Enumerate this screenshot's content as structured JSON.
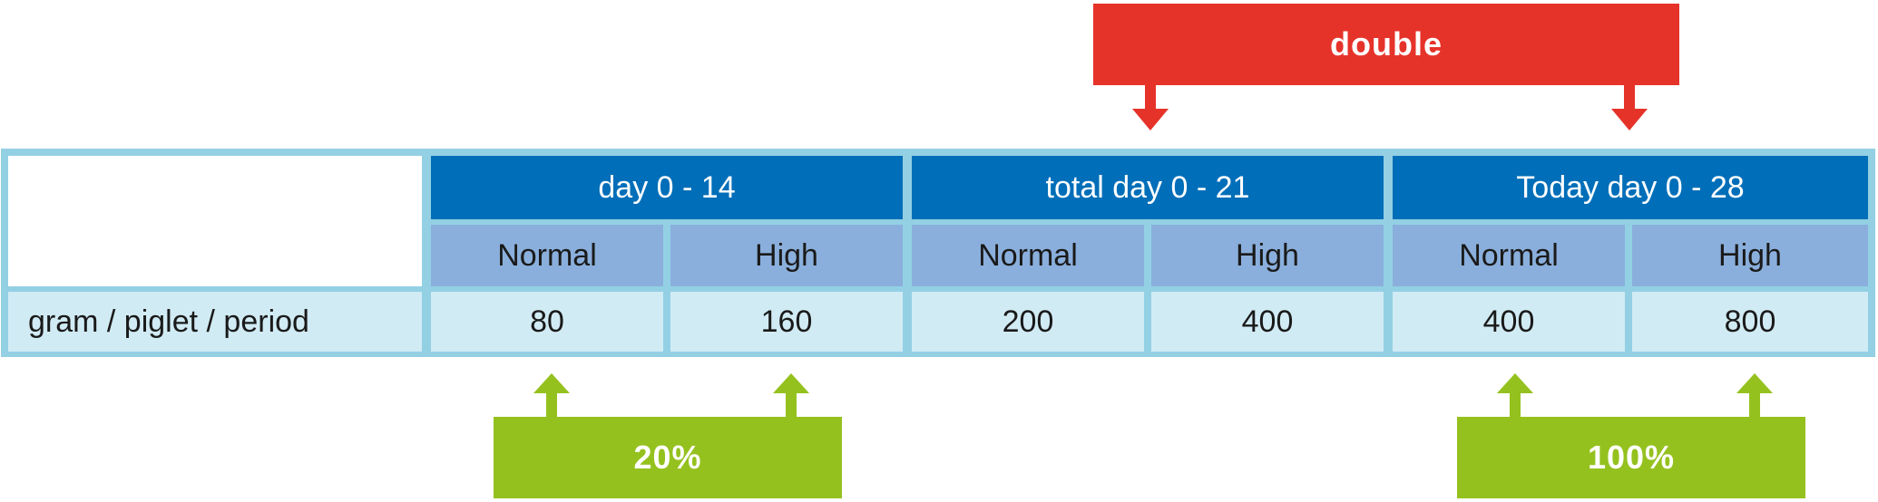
{
  "table": {
    "periods": [
      {
        "label": "day 0 - 14",
        "levels": [
          {
            "label": "Normal",
            "value": "80"
          },
          {
            "label": "High",
            "value": "160"
          }
        ]
      },
      {
        "label": "total day 0 - 21",
        "levels": [
          {
            "label": "Normal",
            "value": "200"
          },
          {
            "label": "High",
            "value": "400"
          }
        ]
      },
      {
        "label": "Today day 0 - 28",
        "levels": [
          {
            "label": "Normal",
            "value": "400"
          },
          {
            "label": "High",
            "value": "800"
          }
        ]
      }
    ],
    "row_label": "gram / piglet / period"
  },
  "callouts": {
    "double": "double",
    "percent_20": "20%",
    "percent_100": "100%"
  },
  "colors": {
    "frame": "#93d0e4",
    "period_header": "#006eb8",
    "level_header": "#8aafdc",
    "value_cell": "#d1ebf4",
    "red_callout": "#e6332a",
    "green_callout": "#95c11f"
  }
}
